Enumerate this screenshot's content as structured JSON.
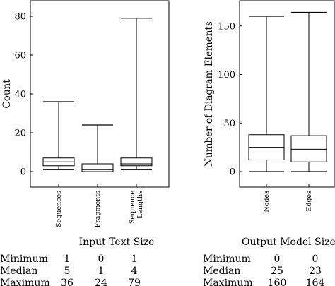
{
  "chart_data": [
    {
      "type": "box",
      "title": "",
      "xlabel": "",
      "ylabel": "Count",
      "ylim": [
        -8,
        88
      ],
      "yticks": [
        0,
        20,
        40,
        60,
        80
      ],
      "grid": false,
      "categories": [
        "Sequences",
        "Fragments",
        "Sequence Lengths"
      ],
      "boxes": [
        {
          "min": 1,
          "q1": 3,
          "median": 5,
          "q3": 7,
          "max": 36
        },
        {
          "min": 0,
          "q1": 0,
          "median": 1,
          "q3": 4,
          "max": 24
        },
        {
          "min": 1,
          "q1": 3,
          "median": 4,
          "q3": 7,
          "max": 79
        }
      ]
    },
    {
      "type": "box",
      "title": "",
      "xlabel": "",
      "ylabel": "Number of Diagram Elements",
      "ylim": [
        -16,
        176
      ],
      "yticks": [
        0,
        50,
        100,
        150
      ],
      "grid": false,
      "categories": [
        "Nodes",
        "Edges"
      ],
      "boxes": [
        {
          "min": 0,
          "q1": 12,
          "median": 25,
          "q3": 38,
          "max": 160
        },
        {
          "min": 0,
          "q1": 10,
          "median": 23,
          "q3": 37,
          "max": 164
        }
      ]
    }
  ],
  "tables": [
    {
      "title": "Input Text Size",
      "rows": [
        {
          "label": "Minimum",
          "values": [
            "1",
            "0",
            "1"
          ]
        },
        {
          "label": "Median",
          "values": [
            "5",
            "1",
            "4"
          ]
        },
        {
          "label": "Maximum",
          "values": [
            "36",
            "24",
            "79"
          ]
        }
      ]
    },
    {
      "title": "Output Model Size",
      "rows": [
        {
          "label": "Minimum",
          "values": [
            "0",
            "0"
          ]
        },
        {
          "label": "Median",
          "values": [
            "25",
            "23"
          ]
        },
        {
          "label": "Maximum",
          "values": [
            "160",
            "164"
          ]
        }
      ]
    }
  ]
}
